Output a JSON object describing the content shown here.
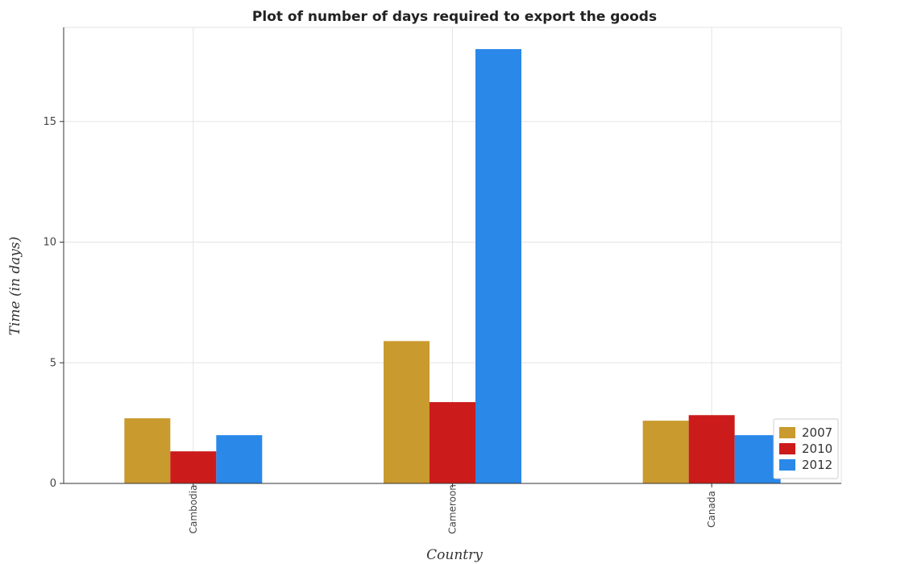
{
  "chart_data": {
    "type": "bar",
    "title": "Plot of number of days required to export the goods",
    "xlabel": "Country",
    "ylabel": "Time (in days)",
    "categories": [
      "Cambodia",
      "Cameroon",
      "Canada"
    ],
    "series": [
      {
        "name": "2007",
        "color": "#c99a2e",
        "values": [
          2.7,
          5.9,
          2.6
        ]
      },
      {
        "name": "2010",
        "color": "#cc1b1b",
        "values": [
          1.33,
          3.37,
          2.83
        ]
      },
      {
        "name": "2012",
        "color": "#2a88e8",
        "values": [
          2.0,
          18.0,
          2.0
        ]
      }
    ],
    "ylim": [
      0,
      18.9
    ],
    "yticks": [
      0,
      5,
      10,
      15
    ],
    "grid": true,
    "legend_position": "bottom-right"
  }
}
